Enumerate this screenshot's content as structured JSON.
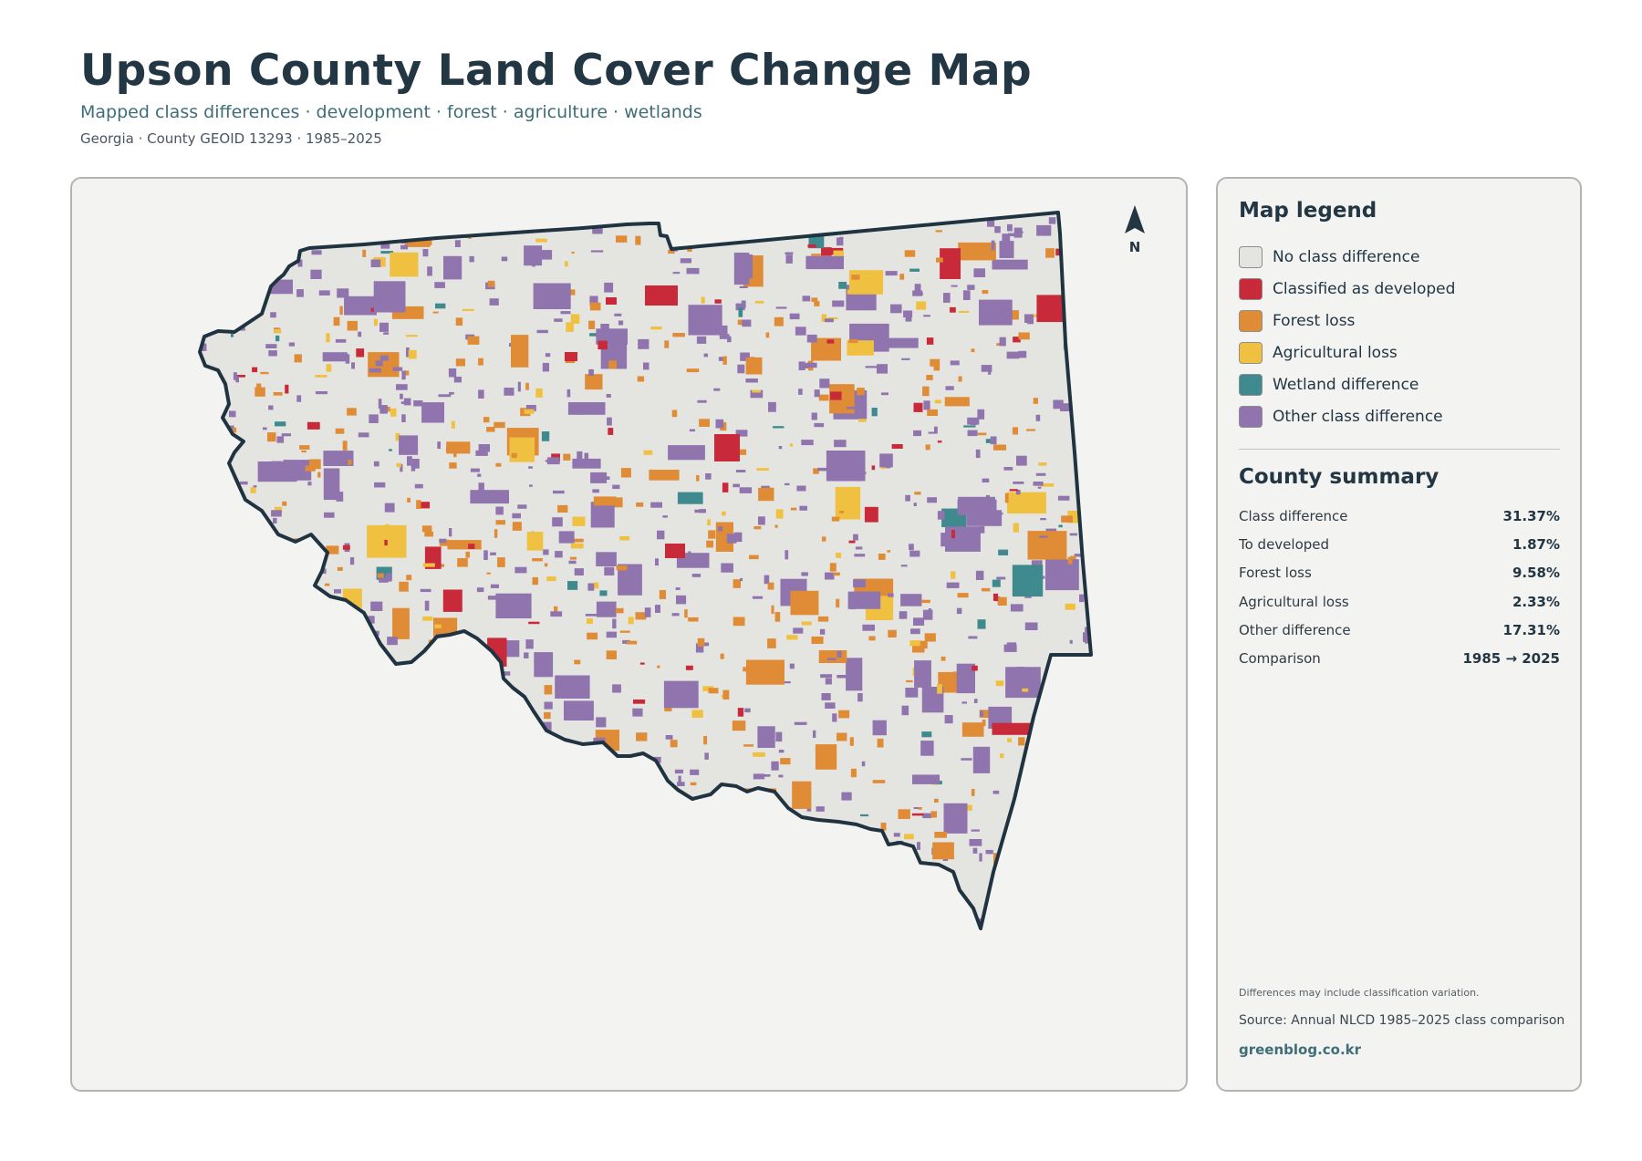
{
  "header": {
    "title": "Upson County Land Cover Change Map",
    "subtitle": "Mapped class differences · development · forest · agriculture · wetlands",
    "meta": "Georgia · County GEOID 13293 · 1985–2025"
  },
  "map": {
    "north_label": "N",
    "outline_color": "#1f3340",
    "base_color": "#e4e4e0"
  },
  "legend": {
    "title": "Map legend",
    "items": [
      {
        "label": "No class difference",
        "color": "#e4e4e0"
      },
      {
        "label": "Classified as developed",
        "color": "#c92a3a"
      },
      {
        "label": "Forest loss",
        "color": "#e08b35"
      },
      {
        "label": "Agricultural loss",
        "color": "#f0c040"
      },
      {
        "label": "Wetland difference",
        "color": "#3e8a8e"
      },
      {
        "label": "Other class difference",
        "color": "#8f74ad"
      }
    ]
  },
  "summary": {
    "title": "County summary",
    "rows": [
      {
        "label": "Class difference",
        "value": "31.37%"
      },
      {
        "label": "To developed",
        "value": "1.87%"
      },
      {
        "label": "Forest loss",
        "value": "9.58%"
      },
      {
        "label": "Agricultural loss",
        "value": "2.33%"
      },
      {
        "label": "Other difference",
        "value": "17.31%"
      },
      {
        "label": "Comparison",
        "value": "1985 → 2025"
      }
    ]
  },
  "footer": {
    "note": "Differences may include classification variation.",
    "source": "Source: Annual NLCD 1985–2025 class comparison",
    "site": "greenblog.co.kr"
  }
}
